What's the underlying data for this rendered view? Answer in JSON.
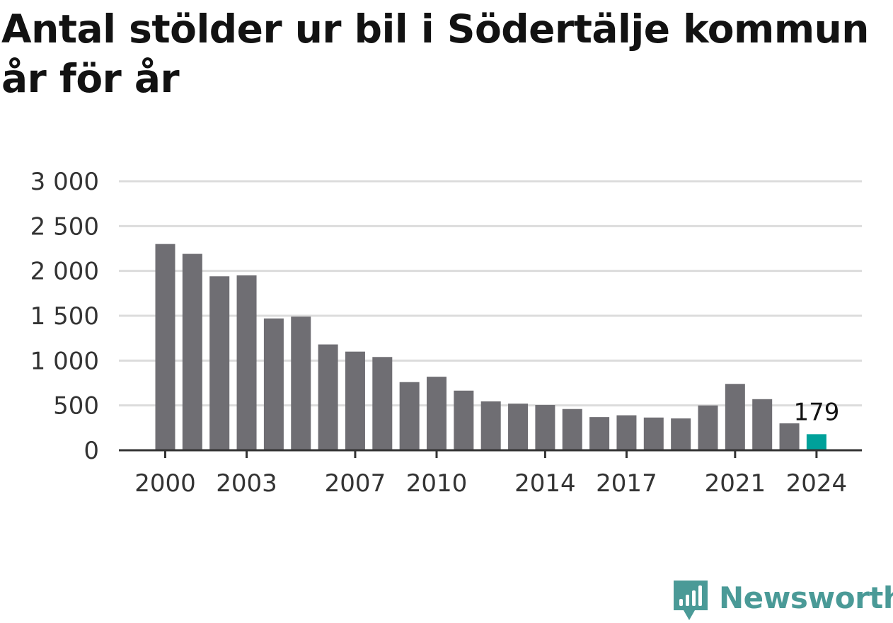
{
  "title": "Antal stölder ur bil i Södertälje kommun år för år",
  "chart_data": {
    "type": "bar",
    "categories": [
      "2000",
      "2001",
      "2002",
      "2003",
      "2004",
      "2005",
      "2006",
      "2007",
      "2008",
      "2009",
      "2010",
      "2011",
      "2012",
      "2013",
      "2014",
      "2015",
      "2016",
      "2017",
      "2018",
      "2019",
      "2020",
      "2021",
      "2022",
      "2023",
      "2024"
    ],
    "values": [
      2300,
      2190,
      1940,
      1950,
      1470,
      1490,
      1180,
      1100,
      1040,
      760,
      820,
      665,
      545,
      520,
      505,
      460,
      370,
      390,
      365,
      355,
      500,
      740,
      570,
      300,
      179
    ],
    "x_tick_labels": [
      "2000",
      "2003",
      "2007",
      "2010",
      "2014",
      "2017",
      "2021",
      "2024"
    ],
    "y_ticks": [
      0,
      500,
      1000,
      1500,
      2000,
      2500,
      3000
    ],
    "y_tick_labels": [
      "0",
      "500",
      "1 000",
      "1 500",
      "2 000",
      "2 500",
      "3 000"
    ],
    "ylim": [
      0,
      3000
    ],
    "highlight": {
      "category": "2024",
      "label": "179"
    },
    "colors": {
      "bar": "#6f6e73",
      "highlight": "#00a19a",
      "grid": "#dcdcdc",
      "axis": "#333333"
    },
    "xlabel": "",
    "ylabel": "",
    "grid": true
  },
  "logo": {
    "text": "Newsworthy",
    "icon": "newsworthy-logo-icon",
    "color": "#4a9a97"
  }
}
